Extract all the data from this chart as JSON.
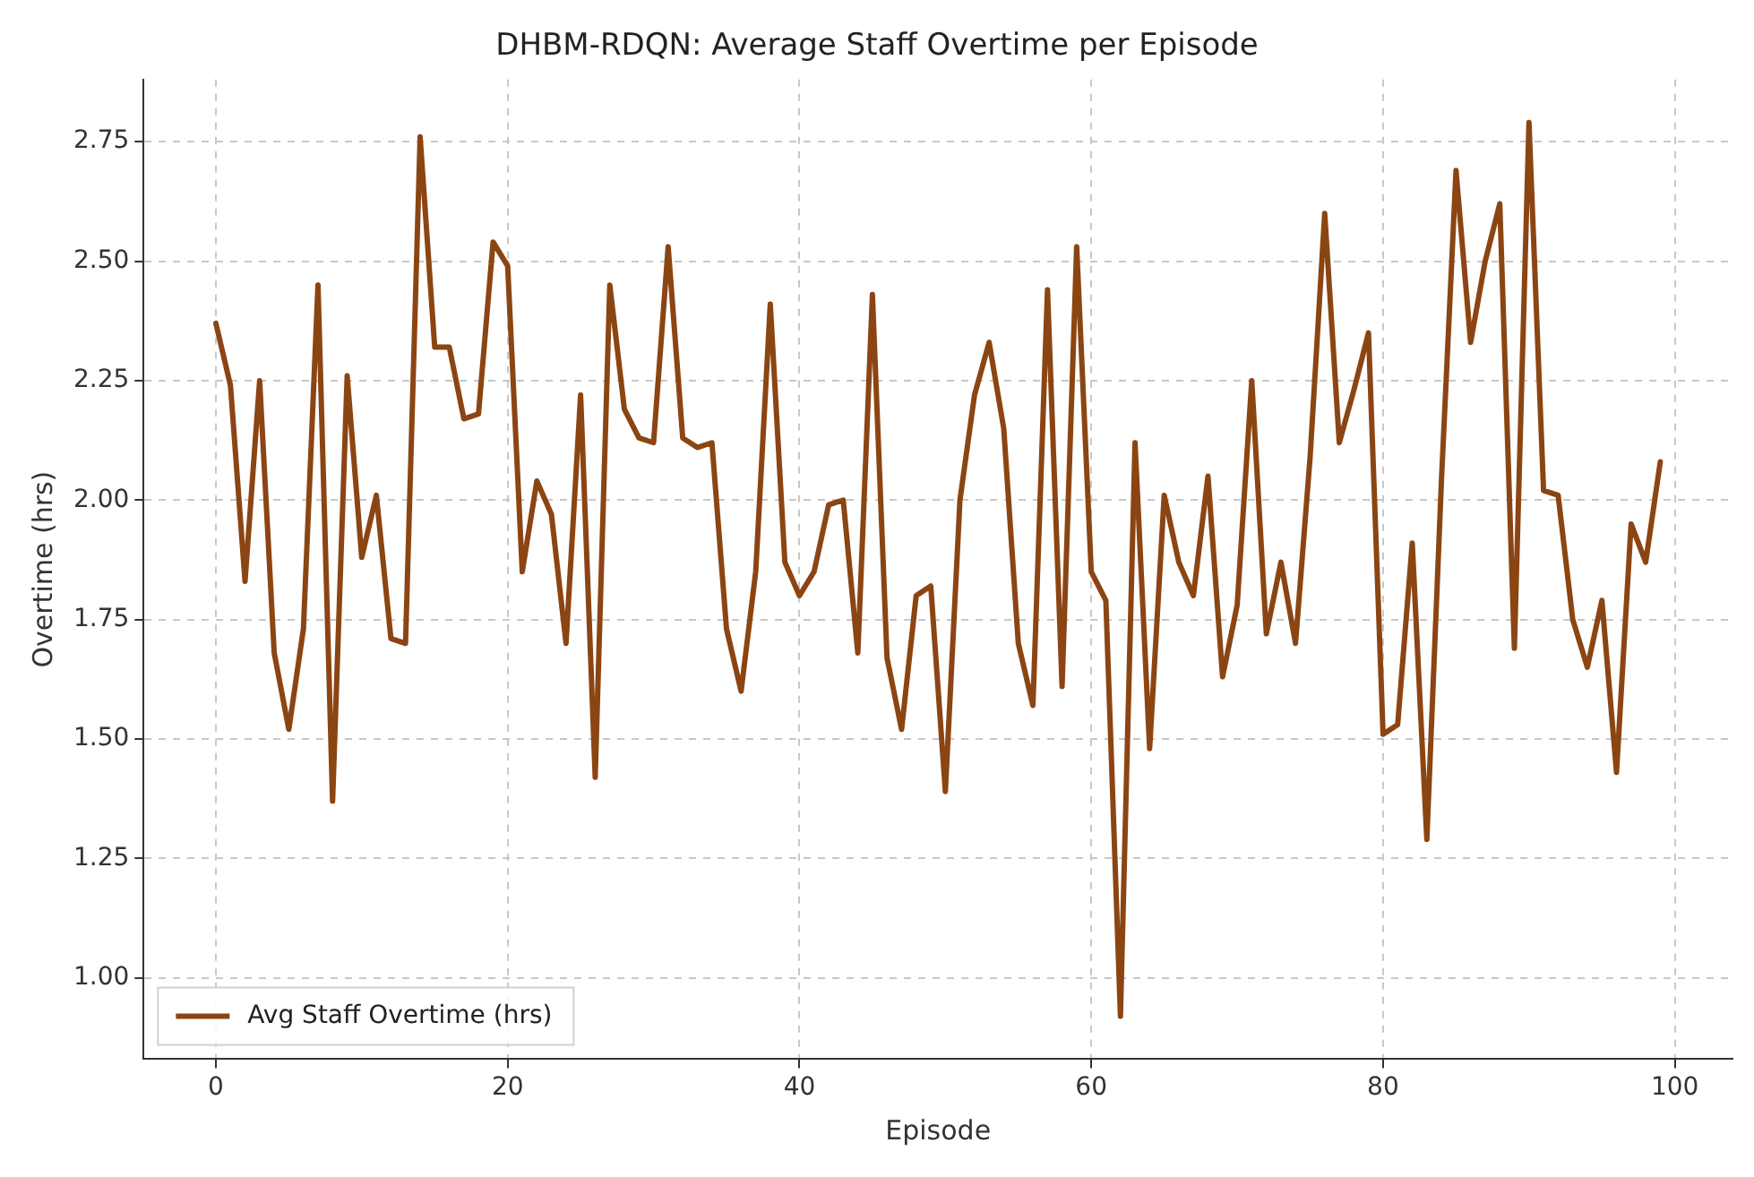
{
  "chart_data": {
    "type": "line",
    "title": "DHBM-RDQN: Average Staff Overtime per Episode",
    "xlabel": "Episode",
    "ylabel": "Overtime (hrs)",
    "x": [
      0,
      1,
      2,
      3,
      4,
      5,
      6,
      7,
      8,
      9,
      10,
      11,
      12,
      13,
      14,
      15,
      16,
      17,
      18,
      19,
      20,
      21,
      22,
      23,
      24,
      25,
      26,
      27,
      28,
      29,
      30,
      31,
      32,
      33,
      34,
      35,
      36,
      37,
      38,
      39,
      40,
      41,
      42,
      43,
      44,
      45,
      46,
      47,
      48,
      49,
      50,
      51,
      52,
      53,
      54,
      55,
      56,
      57,
      58,
      59,
      60,
      61,
      62,
      63,
      64,
      65,
      66,
      67,
      68,
      69,
      70,
      71,
      72,
      73,
      74,
      75,
      76,
      77,
      78,
      79,
      80,
      81,
      82,
      83,
      84,
      85,
      86,
      87,
      88,
      89,
      90,
      91,
      92,
      93,
      94,
      95,
      96,
      97,
      98,
      99
    ],
    "series": [
      {
        "name": "Avg Staff Overtime (hrs)",
        "color": "#8b4513",
        "values": [
          2.37,
          2.24,
          1.83,
          2.25,
          1.68,
          1.52,
          1.73,
          2.45,
          1.37,
          2.26,
          1.88,
          2.01,
          1.71,
          1.7,
          2.76,
          2.32,
          2.32,
          2.17,
          2.18,
          2.54,
          2.49,
          1.85,
          2.04,
          1.97,
          1.7,
          2.22,
          1.42,
          2.45,
          2.19,
          2.13,
          2.12,
          2.53,
          2.13,
          2.11,
          2.12,
          1.73,
          1.6,
          1.85,
          2.41,
          1.87,
          1.8,
          1.85,
          1.99,
          2.0,
          1.68,
          2.43,
          1.67,
          1.52,
          1.8,
          1.82,
          1.39,
          2.0,
          2.22,
          2.33,
          2.15,
          1.7,
          1.57,
          2.44,
          1.61,
          2.53,
          1.85,
          1.79,
          0.92,
          2.12,
          1.48,
          2.01,
          1.87,
          1.8,
          2.05,
          1.63,
          1.78,
          2.25,
          1.72,
          1.87,
          1.7,
          2.09,
          2.6,
          2.12,
          2.23,
          2.35,
          1.51,
          1.53,
          1.91,
          1.29,
          2.04,
          2.69,
          2.33,
          2.5,
          2.62,
          1.69,
          2.79,
          2.02,
          2.01,
          1.75,
          1.65,
          1.79,
          1.43,
          1.95,
          1.87,
          2.08
        ]
      }
    ],
    "xlim": [
      -4.95,
      103.95
    ],
    "xticks": [
      0,
      20,
      40,
      60,
      80,
      100
    ],
    "ylim": [
      0.83,
      2.88
    ],
    "yticks": [
      {
        "value": 1,
        "label": "1.00"
      },
      1.25,
      {
        "value": 1.5,
        "label": "1.50"
      },
      1.75,
      {
        "value": 2,
        "label": "2.00"
      },
      2.25,
      {
        "value": 2.5,
        "label": "2.50"
      },
      2.75
    ],
    "grid": true,
    "legend": "bottom left",
    "line_style": "solid",
    "marker": "none"
  }
}
